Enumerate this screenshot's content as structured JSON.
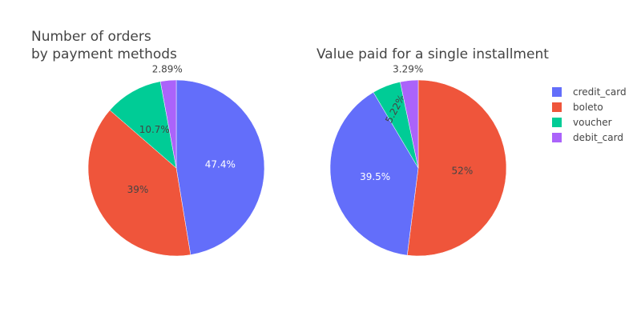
{
  "chart_data": [
    {
      "type": "pie",
      "title": "Number of orders",
      "subtitle": "by payment methods",
      "categories": [
        "credit_card",
        "boleto",
        "voucher",
        "debit_card"
      ],
      "values": [
        47.4,
        39,
        10.7,
        2.89
      ],
      "labels": [
        "47.4%",
        "39%",
        "10.7%",
        "2.89%"
      ],
      "direction": "clockwise",
      "start": "12 o'clock"
    },
    {
      "type": "pie",
      "title": "Value paid for a single installment",
      "categories": [
        "boleto",
        "credit_card",
        "voucher",
        "debit_card"
      ],
      "values": [
        52,
        39.5,
        5.22,
        3.29
      ],
      "labels": [
        "52%",
        "39.5%",
        "5.22%",
        "3.29%"
      ],
      "direction": "clockwise",
      "start": "12 o'clock"
    }
  ],
  "legend": {
    "placement": "top-right",
    "items": [
      {
        "label": "credit_card",
        "color": "#636efa"
      },
      {
        "label": "boleto",
        "color": "#ef553b"
      },
      {
        "label": "voucher",
        "color": "#00cc96"
      },
      {
        "label": "debit_card",
        "color": "#ab63fa"
      }
    ]
  }
}
